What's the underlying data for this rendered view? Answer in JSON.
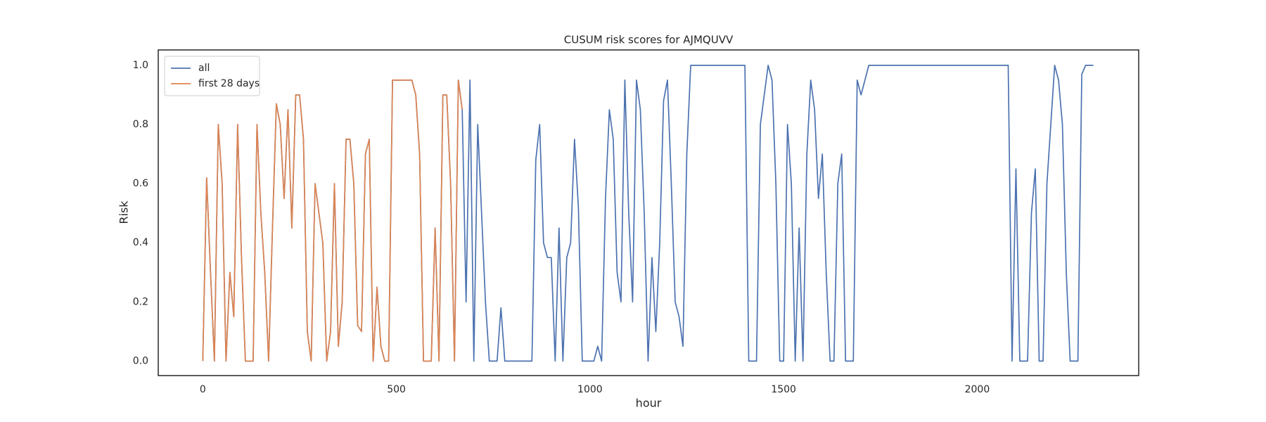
{
  "chart_data": {
    "type": "line",
    "title": "CUSUM risk scores for AJMQUVV",
    "xlabel": "hour",
    "ylabel": "Risk",
    "x": [
      0,
      10,
      20,
      30,
      40,
      50,
      60,
      70,
      80,
      90,
      100,
      110,
      120,
      130,
      140,
      150,
      160,
      170,
      180,
      190,
      200,
      210,
      220,
      230,
      240,
      250,
      260,
      270,
      280,
      290,
      300,
      310,
      320,
      330,
      340,
      350,
      360,
      370,
      380,
      390,
      400,
      410,
      420,
      430,
      440,
      450,
      460,
      470,
      480,
      490,
      500,
      510,
      520,
      530,
      540,
      550,
      560,
      570,
      580,
      590,
      600,
      610,
      620,
      630,
      640,
      650,
      660,
      670,
      680,
      690,
      700,
      710,
      720,
      730,
      740,
      750,
      760,
      770,
      780,
      790,
      800,
      810,
      820,
      830,
      840,
      850,
      860,
      870,
      880,
      890,
      900,
      910,
      920,
      930,
      940,
      950,
      960,
      970,
      980,
      990,
      1000,
      1010,
      1020,
      1030,
      1040,
      1050,
      1060,
      1070,
      1080,
      1090,
      1100,
      1110,
      1120,
      1130,
      1140,
      1150,
      1160,
      1170,
      1180,
      1190,
      1200,
      1210,
      1220,
      1230,
      1240,
      1250,
      1260,
      1270,
      1280,
      1290,
      1300,
      1310,
      1320,
      1330,
      1340,
      1350,
      1360,
      1370,
      1380,
      1390,
      1400,
      1410,
      1420,
      1430,
      1440,
      1450,
      1460,
      1470,
      1480,
      1490,
      1500,
      1510,
      1520,
      1530,
      1540,
      1550,
      1560,
      1570,
      1580,
      1590,
      1600,
      1610,
      1620,
      1630,
      1640,
      1650,
      1660,
      1670,
      1680,
      1690,
      1700,
      1710,
      1720,
      1730,
      1740,
      1750,
      1760,
      1770,
      1780,
      1790,
      1800,
      1810,
      1820,
      1830,
      1840,
      1850,
      1860,
      1870,
      1880,
      1890,
      1900,
      1910,
      1920,
      1930,
      1940,
      1950,
      1960,
      1970,
      1980,
      1990,
      2000,
      2010,
      2020,
      2030,
      2040,
      2050,
      2060,
      2070,
      2080,
      2090,
      2100,
      2110,
      2120,
      2130,
      2140,
      2150,
      2160,
      2170,
      2180,
      2190,
      2200,
      2210,
      2220,
      2230,
      2240,
      2250,
      2260,
      2270,
      2280,
      2290,
      2300
    ],
    "series": [
      {
        "name": "all",
        "color": "#4c72b0",
        "values": [
          0,
          0.62,
          0.3,
          0,
          0.8,
          0.6,
          0,
          0.3,
          0.15,
          0.8,
          0.35,
          0,
          0,
          0,
          0.8,
          0.5,
          0.3,
          0,
          0.45,
          0.87,
          0.8,
          0.55,
          0.85,
          0.45,
          0.9,
          0.9,
          0.75,
          0.1,
          0,
          0.6,
          0.5,
          0.4,
          0,
          0.1,
          0.6,
          0.05,
          0.2,
          0.75,
          0.75,
          0.6,
          0.12,
          0.1,
          0.7,
          0.75,
          0,
          0.25,
          0.05,
          0,
          0,
          0.95,
          0.95,
          0.95,
          0.95,
          0.95,
          0.95,
          0.9,
          0.7,
          0,
          0,
          0,
          0.45,
          0,
          0.9,
          0.9,
          0.6,
          0,
          0.95,
          0.85,
          0.2,
          0.95,
          0,
          0.8,
          0.5,
          0.2,
          0,
          0,
          0,
          0.18,
          0,
          0,
          0,
          0,
          0,
          0,
          0,
          0,
          0.68,
          0.8,
          0.4,
          0.35,
          0.35,
          0,
          0.45,
          0,
          0.35,
          0.4,
          0.75,
          0.52,
          0,
          0,
          0,
          0,
          0.05,
          0,
          0.55,
          0.85,
          0.75,
          0.3,
          0.2,
          0.95,
          0.5,
          0.2,
          0.95,
          0.85,
          0.5,
          0,
          0.35,
          0.1,
          0.4,
          0.88,
          0.95,
          0.6,
          0.2,
          0.15,
          0.05,
          0.7,
          1,
          1,
          1,
          1,
          1,
          1,
          1,
          1,
          1,
          1,
          1,
          1,
          1,
          1,
          1,
          0,
          0,
          0,
          0.8,
          0.9,
          1,
          0.95,
          0.6,
          0,
          0,
          0.8,
          0.6,
          0,
          0.45,
          0,
          0.7,
          0.95,
          0.85,
          0.55,
          0.7,
          0.3,
          0,
          0,
          0.6,
          0.7,
          0,
          0,
          0,
          0.95,
          0.9,
          0.95,
          1,
          1,
          1,
          1,
          1,
          1,
          1,
          1,
          1,
          1,
          1,
          1,
          1,
          1,
          1,
          1,
          1,
          1,
          1,
          1,
          1,
          1,
          1,
          1,
          1,
          1,
          1,
          1,
          1,
          1,
          1,
          1,
          1,
          1,
          1,
          1,
          1,
          0,
          0.65,
          0,
          0,
          0,
          0.5,
          0.65,
          0,
          0,
          0.6,
          0.8,
          1,
          0.95,
          0.8,
          0.3,
          0,
          0,
          0,
          0.97,
          1,
          1,
          1
        ]
      },
      {
        "name": "first 28 days",
        "color": "#dd8452",
        "values": [
          0,
          0.62,
          0.3,
          0,
          0.8,
          0.6,
          0,
          0.3,
          0.15,
          0.8,
          0.35,
          0,
          0,
          0,
          0.8,
          0.5,
          0.3,
          0,
          0.45,
          0.87,
          0.8,
          0.55,
          0.85,
          0.45,
          0.9,
          0.9,
          0.75,
          0.1,
          0,
          0.6,
          0.5,
          0.4,
          0,
          0.1,
          0.6,
          0.05,
          0.2,
          0.75,
          0.75,
          0.6,
          0.12,
          0.1,
          0.7,
          0.75,
          0,
          0.25,
          0.05,
          0,
          0,
          0.95,
          0.95,
          0.95,
          0.95,
          0.95,
          0.95,
          0.9,
          0.7,
          0,
          0,
          0,
          0.45,
          0,
          0.9,
          0.9,
          0.6,
          0,
          0.95,
          0.85,
          null,
          null,
          null,
          null,
          null,
          null,
          null,
          null,
          null,
          null,
          null,
          null,
          null,
          null,
          null,
          null,
          null,
          null,
          null,
          null,
          null,
          null,
          null,
          null,
          null,
          null,
          null,
          null,
          null,
          null,
          null,
          null,
          null,
          null,
          null,
          null,
          null,
          null,
          null,
          null,
          null,
          null,
          null,
          null,
          null,
          null,
          null,
          null,
          null,
          null,
          null,
          null,
          null,
          null,
          null,
          null,
          null,
          null,
          null,
          null,
          null,
          null,
          null,
          null,
          null,
          null,
          null,
          null,
          null,
          null,
          null,
          null,
          null,
          null,
          null,
          null,
          null,
          null,
          null,
          null,
          null,
          null,
          null,
          null,
          null,
          null,
          null,
          null,
          null,
          null,
          null,
          null,
          null,
          null,
          null,
          null,
          null,
          null,
          null,
          null,
          null,
          null,
          null,
          null,
          null,
          null,
          null,
          null,
          null,
          null,
          null,
          null,
          null,
          null,
          null,
          null,
          null,
          null,
          null,
          null,
          null,
          null,
          null,
          null,
          null,
          null,
          null,
          null,
          null,
          null,
          null,
          null,
          null,
          null,
          null,
          null,
          null,
          null,
          null,
          null,
          null,
          null,
          null,
          null,
          null,
          null,
          null,
          null,
          null,
          null,
          null,
          null,
          null,
          null,
          null,
          null,
          null,
          null,
          null,
          null,
          null,
          null,
          null
        ]
      }
    ],
    "xlim": [
      -115,
      2417
    ],
    "ylim": [
      -0.049,
      1.052
    ],
    "xticks": [
      0,
      500,
      1000,
      1500,
      2000
    ],
    "yticks": [
      {
        "value": 0,
        "label": "0.0"
      },
      {
        "value": 0.2,
        "label": "0.2"
      },
      {
        "value": 0.4,
        "label": "0.4"
      },
      {
        "value": 0.6,
        "label": "0.6"
      },
      {
        "value": 0.8,
        "label": "0.8"
      },
      {
        "value": 1,
        "label": "1.0"
      }
    ],
    "legend": "upper left",
    "grid": false
  }
}
